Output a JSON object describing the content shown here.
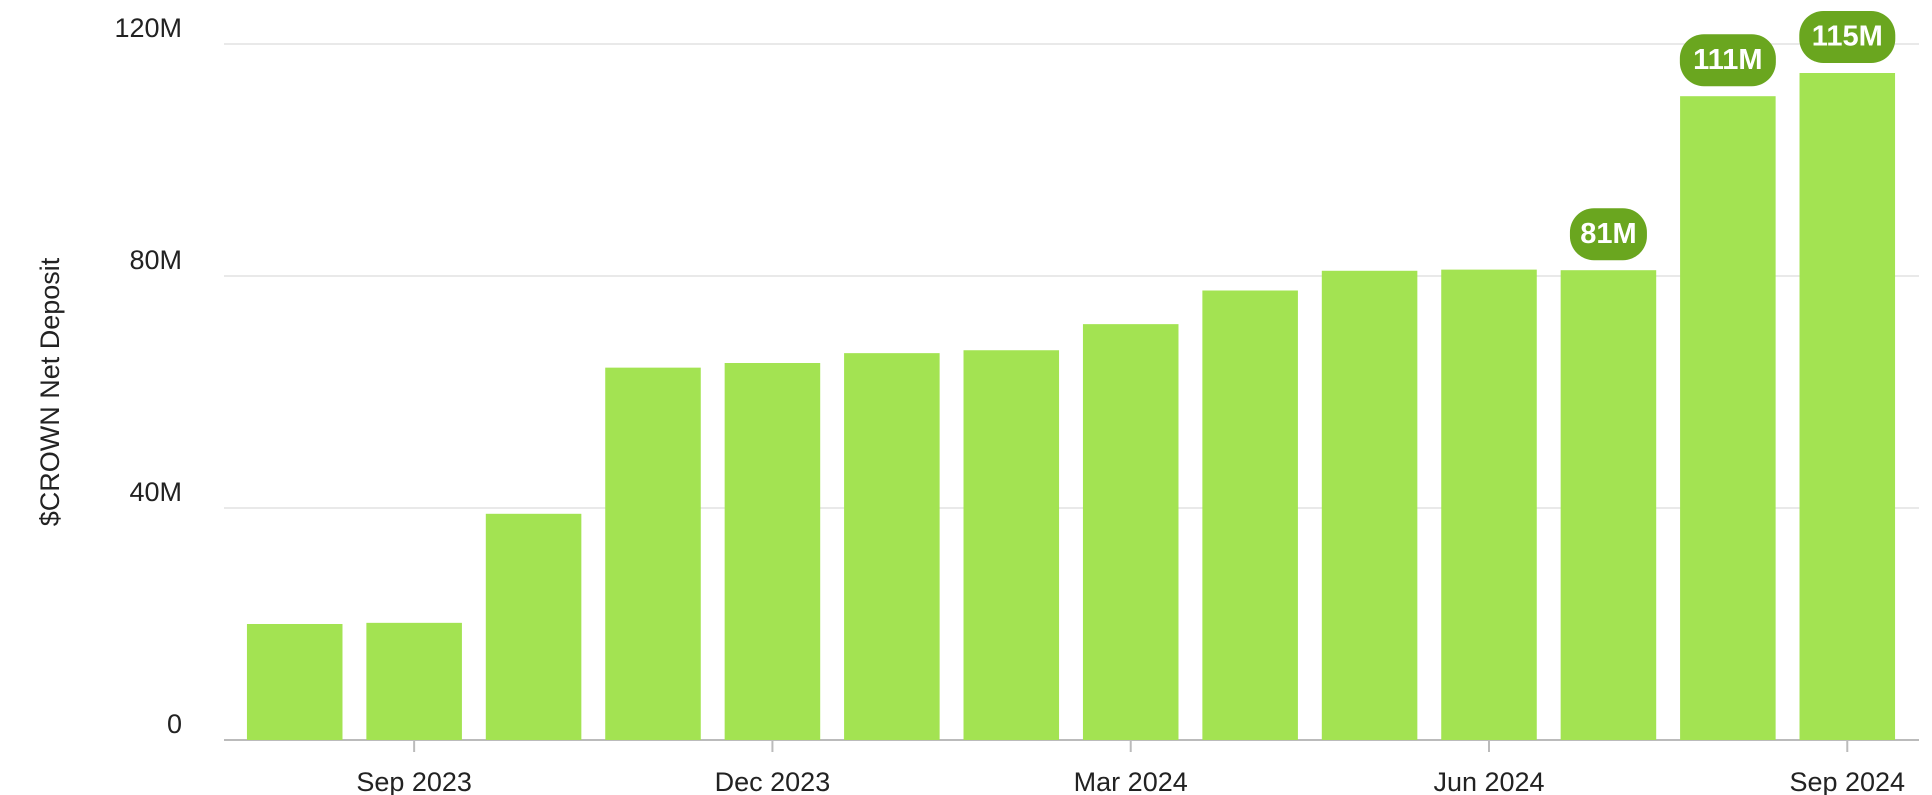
{
  "chart_data": {
    "type": "bar",
    "y_label": "$CROWN Net Deposit",
    "categories": [
      null,
      "Sep 2023",
      null,
      null,
      "Dec 2023",
      null,
      null,
      "Mar 2024",
      null,
      null,
      "Jun 2024",
      null,
      null,
      "Sep 2024"
    ],
    "values": [
      20,
      20.2,
      39,
      64.2,
      65,
      66.7,
      67.2,
      71.7,
      77.5,
      80.9,
      81.1,
      81,
      111,
      115
    ],
    "value_labels": [
      null,
      null,
      null,
      null,
      null,
      null,
      null,
      null,
      null,
      null,
      null,
      "81M",
      "111M",
      "115M"
    ],
    "color": "#a3e352",
    "label_color": "#6aa61f",
    "ylim": [
      0,
      120
    ],
    "yticks": [
      0,
      {
        "value": 40,
        "label": "40M"
      },
      {
        "value": 80,
        "label": "80M"
      },
      {
        "value": 120,
        "label": "120M"
      }
    ],
    "grid": true
  }
}
